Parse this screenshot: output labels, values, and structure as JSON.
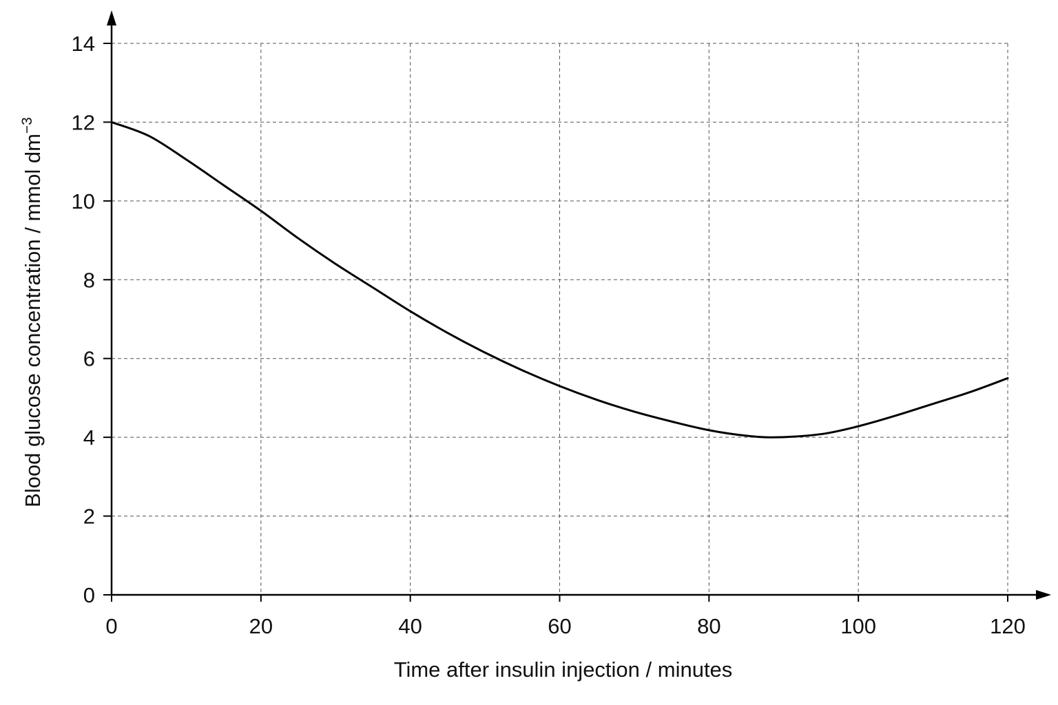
{
  "chart_data": {
    "type": "line",
    "title": "",
    "xlabel": "Time after insulin injection / minutes",
    "ylabel": "Blood glucose concentration / mmol dm",
    "ylabel_superscript": "−3",
    "xlim": [
      0,
      120
    ],
    "ylim": [
      0,
      14
    ],
    "x_ticks": [
      0,
      20,
      40,
      60,
      80,
      100,
      120
    ],
    "y_ticks": [
      0,
      2,
      4,
      6,
      8,
      10,
      12,
      14
    ],
    "x_tick_labels": [
      "0",
      "20",
      "40",
      "60",
      "80",
      "100",
      "120"
    ],
    "y_tick_labels": [
      "0",
      "2",
      "4",
      "6",
      "8",
      "10",
      "12",
      "14"
    ],
    "grid": true,
    "legend": "none",
    "series": [
      {
        "color": "#000000",
        "x": [
          0,
          5,
          10,
          15,
          20,
          25,
          30,
          35,
          40,
          45,
          50,
          55,
          60,
          65,
          70,
          75,
          80,
          85,
          89,
          95,
          100,
          105,
          110,
          115,
          120
        ],
        "y": [
          12.0,
          11.65,
          11.05,
          10.4,
          9.75,
          9.05,
          8.4,
          7.8,
          7.2,
          6.65,
          6.15,
          5.7,
          5.3,
          4.95,
          4.65,
          4.4,
          4.18,
          4.04,
          4.0,
          4.08,
          4.28,
          4.55,
          4.85,
          5.15,
          5.5
        ]
      }
    ]
  }
}
